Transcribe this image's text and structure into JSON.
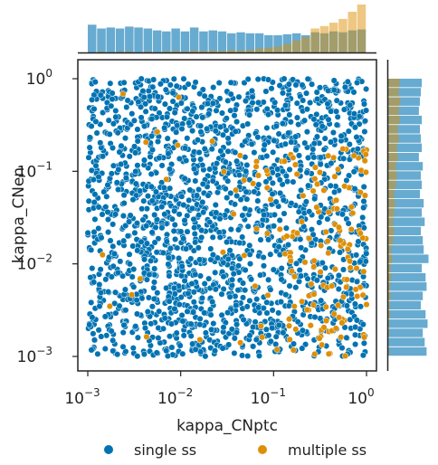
{
  "chart_data": {
    "type": "scatter",
    "xlabel": "kappa_CNptc",
    "ylabel": "kappa_CNen",
    "xscale": "log",
    "yscale": "log",
    "xlim": [
      0.001,
      1
    ],
    "ylim": [
      0.001,
      1
    ],
    "x_ticks": [
      {
        "base": "10",
        "exp": "−3"
      },
      {
        "base": "10",
        "exp": "−2"
      },
      {
        "base": "10",
        "exp": "−1"
      },
      {
        "base": "10",
        "exp": "0"
      }
    ],
    "y_ticks": [
      {
        "base": "10",
        "exp": "0"
      },
      {
        "base": "10",
        "exp": "−1"
      },
      {
        "base": "10",
        "exp": "−2"
      },
      {
        "base": "10",
        "exp": "−3"
      }
    ],
    "legend_position": "bottom",
    "grid": false,
    "marginal_histograms": true,
    "series": [
      {
        "name": "single ss",
        "color": "#0173b2",
        "n_points_approx": 2000,
        "distribution": "log-uniform over both axes, slightly depleted where multiple ss is dense",
        "marginal_x_counts": [
          0.58,
          0.5,
          0.52,
          0.5,
          0.54,
          0.52,
          0.5,
          0.46,
          0.44,
          0.5,
          0.44,
          0.52,
          0.44,
          0.46,
          0.44,
          0.4,
          0.42,
          0.4,
          0.4,
          0.36,
          0.36,
          0.38,
          0.4,
          0.36,
          0.42,
          0.4,
          0.44,
          0.42,
          0.46,
          0.48
        ],
        "marginal_y_counts": [
          0.8,
          0.76,
          0.72,
          0.82,
          0.78,
          0.68,
          0.72,
          0.8,
          0.78,
          0.7,
          0.84,
          0.74,
          0.72,
          0.68,
          0.76,
          0.7,
          0.74,
          0.66,
          0.7,
          0.68,
          0.72,
          0.64,
          0.7,
          0.68,
          0.66,
          0.7,
          0.64,
          0.66,
          0.68,
          0.7
        ]
      },
      {
        "name": "multiple ss",
        "color": "#de8f05",
        "n_points_approx": 150,
        "distribution": "concentrated at high kappa_CNptc (0.05-1) and mid/low kappa_CNen (0.001-0.15)",
        "marginal_x_counts": [
          0.0,
          0.02,
          0.0,
          0.02,
          0.02,
          0.0,
          0.02,
          0.0,
          0.02,
          0.03,
          0.02,
          0.04,
          0.03,
          0.04,
          0.03,
          0.05,
          0.04,
          0.05,
          0.08,
          0.1,
          0.12,
          0.18,
          0.25,
          0.32,
          0.5,
          0.55,
          0.62,
          0.7,
          0.85,
          1.0
        ],
        "marginal_y_counts": [
          0.02,
          0.0,
          0.02,
          0.02,
          0.04,
          0.03,
          0.05,
          0.04,
          0.06,
          0.05,
          0.08,
          0.06,
          0.1,
          0.12,
          0.1,
          0.12,
          0.14,
          0.12,
          0.16,
          0.18,
          0.16,
          0.2,
          0.18,
          0.22,
          0.2,
          0.24,
          0.22,
          0.25,
          0.22,
          0.24
        ]
      }
    ]
  }
}
